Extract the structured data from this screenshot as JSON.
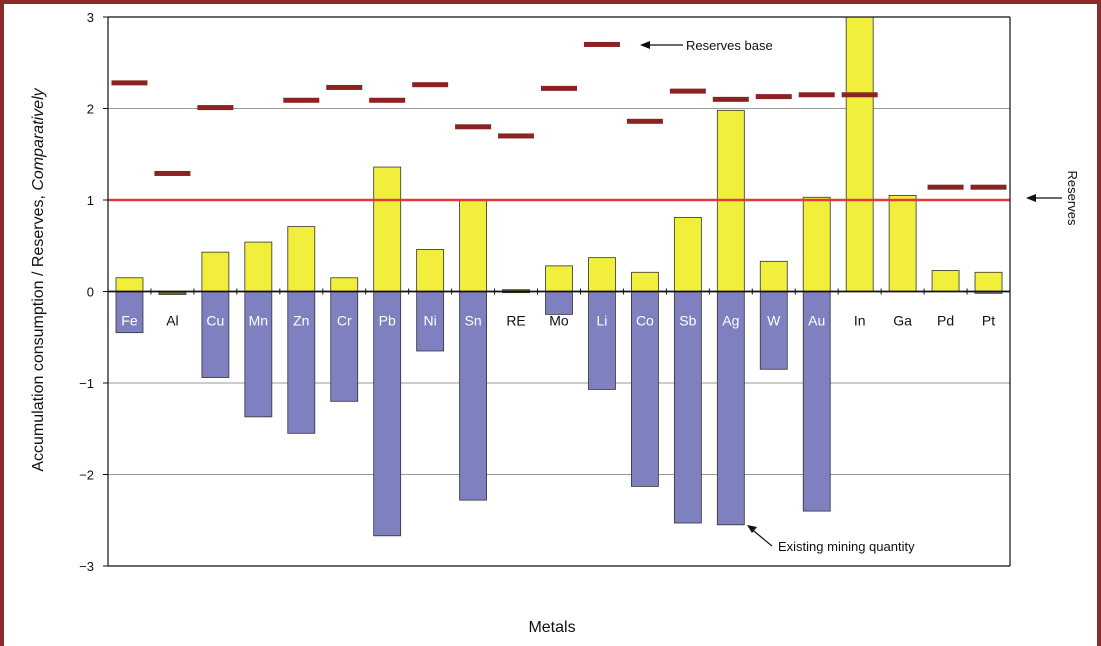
{
  "chart_data": {
    "type": "bar",
    "xlabel": "Metals",
    "ylabel_prefix": "Accumulation consumption / Reserves, ",
    "ylabel_italic": "Comparatively",
    "ylim": [
      -3,
      3
    ],
    "yticks": [
      "3",
      "2",
      "1",
      "0",
      "−1",
      "−2",
      "−3"
    ],
    "categories": [
      "Fe",
      "Al",
      "Cu",
      "Mn",
      "Zn",
      "Cr",
      "Pb",
      "Ni",
      "Sn",
      "RE",
      "Mo",
      "Li",
      "Co",
      "Sb",
      "Ag",
      "W",
      "Au",
      "In",
      "Ga",
      "Pd",
      "Pt"
    ],
    "series": [
      {
        "values": [
          0.15,
          -0.03,
          0.43,
          0.54,
          0.71,
          0.15,
          1.36,
          0.46,
          1.0,
          0.02,
          0.28,
          0.37,
          0.21,
          0.81,
          1.98,
          0.33,
          1.03,
          3.0,
          1.05,
          0.23,
          0.21
        ]
      },
      {
        "values": [
          -0.45,
          0,
          -0.94,
          -1.37,
          -1.55,
          -1.2,
          -2.67,
          -0.65,
          -2.28,
          0,
          -0.25,
          -1.07,
          -2.13,
          -2.53,
          -2.55,
          -0.85,
          -2.4,
          0,
          0,
          0,
          -0.02
        ]
      },
      {
        "name": "Reserves base",
        "values": [
          2.28,
          1.29,
          2.01,
          null,
          2.09,
          2.23,
          2.09,
          2.26,
          1.8,
          1.7,
          2.22,
          2.7,
          1.86,
          2.19,
          2.1,
          2.13,
          2.15,
          2.15,
          null,
          1.14,
          1.14
        ]
      }
    ],
    "reference_line": {
      "value": 1.0,
      "label": "Reserves",
      "color": "#e03c3c"
    },
    "annotations": {
      "reserves_base": "Reserves base",
      "reserves": "Reserves",
      "existing_mining": "Existing mining quantity"
    },
    "colors": {
      "consumption": "#f2ee3c",
      "mining": "#7e80c0",
      "reserves_base": "#8b2323",
      "frame": "#8c2a2a"
    },
    "grid": true
  }
}
